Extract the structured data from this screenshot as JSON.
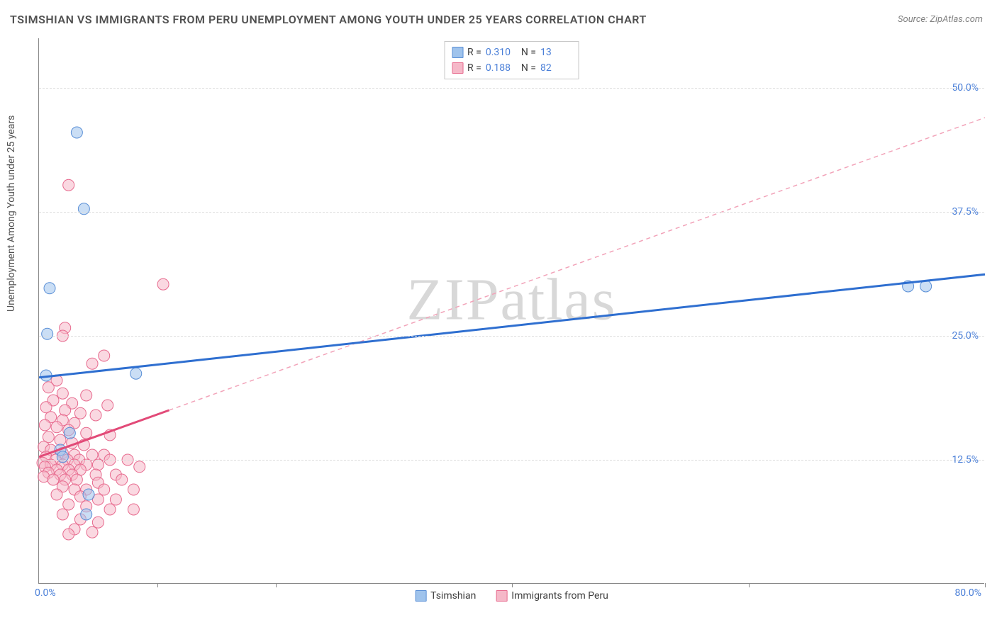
{
  "title": "TSIMSHIAN VS IMMIGRANTS FROM PERU UNEMPLOYMENT AMONG YOUTH UNDER 25 YEARS CORRELATION CHART",
  "source": "Source: ZipAtlas.com",
  "watermark": "ZIPatlas",
  "y_axis_label": "Unemployment Among Youth under 25 years",
  "chart": {
    "type": "scatter",
    "background_color": "#ffffff",
    "grid_color": "#dcdcdc",
    "grid_style": "dashed",
    "axis_color": "#888888",
    "xlim": [
      0,
      80
    ],
    "ylim": [
      0,
      55
    ],
    "x_tick_label_left": "0.0%",
    "x_tick_label_right": "80.0%",
    "x_tick_positions": [
      10,
      20,
      40,
      60,
      80
    ],
    "y_ticks": [
      {
        "value": 12.5,
        "label": "12.5%"
      },
      {
        "value": 25.0,
        "label": "25.0%"
      },
      {
        "value": 37.5,
        "label": "37.5%"
      },
      {
        "value": 50.0,
        "label": "50.0%"
      }
    ],
    "tick_color": "#4a7fd8",
    "tick_fontsize": 14,
    "title_fontsize": 16,
    "title_color": "#505050",
    "label_fontsize": 14,
    "marker_radius": 8,
    "marker_opacity": 0.55,
    "trend_solid_width": 3,
    "trend_dash_pattern": "6,5",
    "series": [
      {
        "name": "Tsimshian",
        "fill": "#9fc3ec",
        "stroke": "#5a8fd6",
        "r_value": "0.310",
        "n_value": "13",
        "points": [
          [
            3.2,
            45.5
          ],
          [
            3.8,
            37.8
          ],
          [
            0.9,
            29.8
          ],
          [
            0.7,
            25.2
          ],
          [
            0.6,
            21.0
          ],
          [
            8.2,
            21.2
          ],
          [
            2.6,
            15.2
          ],
          [
            1.8,
            13.5
          ],
          [
            4.2,
            9.0
          ],
          [
            4.0,
            7.0
          ],
          [
            2.0,
            12.8
          ],
          [
            73.5,
            30.0
          ],
          [
            75.0,
            30.0
          ]
        ],
        "trend": {
          "x1": 0,
          "y1": 20.8,
          "x2": 80,
          "y2": 31.2,
          "style": "solid",
          "color": "#2f6fd0"
        },
        "trend_solid_segment": {
          "x1": 0,
          "y1": 20.8,
          "x2": 80,
          "y2": 31.2
        }
      },
      {
        "name": "Immigrants from Peru",
        "fill": "#f5b8c8",
        "stroke": "#e76a8e",
        "r_value": "0.188",
        "n_value": "82",
        "points": [
          [
            2.5,
            40.2
          ],
          [
            10.5,
            30.2
          ],
          [
            2.2,
            25.8
          ],
          [
            2.0,
            25.0
          ],
          [
            5.5,
            23.0
          ],
          [
            4.5,
            22.2
          ],
          [
            1.5,
            20.5
          ],
          [
            0.8,
            19.8
          ],
          [
            2.0,
            19.2
          ],
          [
            4.0,
            19.0
          ],
          [
            1.2,
            18.5
          ],
          [
            2.8,
            18.2
          ],
          [
            5.8,
            18.0
          ],
          [
            0.6,
            17.8
          ],
          [
            2.2,
            17.5
          ],
          [
            3.5,
            17.2
          ],
          [
            4.8,
            17.0
          ],
          [
            1.0,
            16.8
          ],
          [
            2.0,
            16.5
          ],
          [
            3.0,
            16.2
          ],
          [
            0.5,
            16.0
          ],
          [
            1.5,
            15.8
          ],
          [
            2.5,
            15.5
          ],
          [
            4.0,
            15.2
          ],
          [
            6.0,
            15.0
          ],
          [
            0.8,
            14.8
          ],
          [
            1.8,
            14.5
          ],
          [
            2.8,
            14.2
          ],
          [
            3.8,
            14.0
          ],
          [
            0.4,
            13.8
          ],
          [
            1.0,
            13.5
          ],
          [
            2.0,
            13.2
          ],
          [
            3.0,
            13.0
          ],
          [
            4.5,
            13.0
          ],
          [
            5.5,
            13.0
          ],
          [
            0.6,
            12.8
          ],
          [
            1.4,
            12.5
          ],
          [
            2.4,
            12.5
          ],
          [
            3.4,
            12.5
          ],
          [
            6.0,
            12.5
          ],
          [
            7.5,
            12.5
          ],
          [
            0.3,
            12.2
          ],
          [
            1.0,
            12.0
          ],
          [
            2.0,
            12.0
          ],
          [
            3.0,
            12.0
          ],
          [
            4.0,
            12.0
          ],
          [
            5.0,
            12.0
          ],
          [
            0.5,
            11.8
          ],
          [
            1.5,
            11.5
          ],
          [
            2.5,
            11.5
          ],
          [
            3.5,
            11.5
          ],
          [
            8.5,
            11.8
          ],
          [
            0.8,
            11.2
          ],
          [
            1.8,
            11.0
          ],
          [
            2.8,
            11.0
          ],
          [
            4.8,
            11.0
          ],
          [
            6.5,
            11.0
          ],
          [
            0.4,
            10.8
          ],
          [
            1.2,
            10.5
          ],
          [
            2.2,
            10.5
          ],
          [
            3.2,
            10.5
          ],
          [
            5.0,
            10.2
          ],
          [
            7.0,
            10.5
          ],
          [
            2.0,
            9.8
          ],
          [
            3.0,
            9.5
          ],
          [
            4.0,
            9.5
          ],
          [
            5.5,
            9.5
          ],
          [
            8.0,
            9.5
          ],
          [
            1.5,
            9.0
          ],
          [
            3.5,
            8.8
          ],
          [
            5.0,
            8.5
          ],
          [
            6.5,
            8.5
          ],
          [
            2.5,
            8.0
          ],
          [
            4.0,
            7.8
          ],
          [
            6.0,
            7.5
          ],
          [
            8.0,
            7.5
          ],
          [
            2.0,
            7.0
          ],
          [
            3.5,
            6.5
          ],
          [
            5.0,
            6.2
          ],
          [
            3.0,
            5.5
          ],
          [
            4.5,
            5.2
          ],
          [
            2.5,
            5.0
          ]
        ],
        "trend": {
          "x1": 11,
          "y1": 17.5,
          "x2": 80,
          "y2": 47.0,
          "style": "dashed",
          "color": "#f2a3b9"
        },
        "trend_solid_segment": {
          "x1": 0,
          "y1": 12.8,
          "x2": 11,
          "y2": 17.5,
          "color": "#e24a78"
        }
      }
    ]
  },
  "legend_top": {
    "r_label": "R =",
    "n_label": "N ="
  },
  "legend_bottom": [
    {
      "label": "Tsimshian",
      "fill": "#9fc3ec",
      "stroke": "#5a8fd6"
    },
    {
      "label": "Immigrants from Peru",
      "fill": "#f5b8c8",
      "stroke": "#e76a8e"
    }
  ]
}
